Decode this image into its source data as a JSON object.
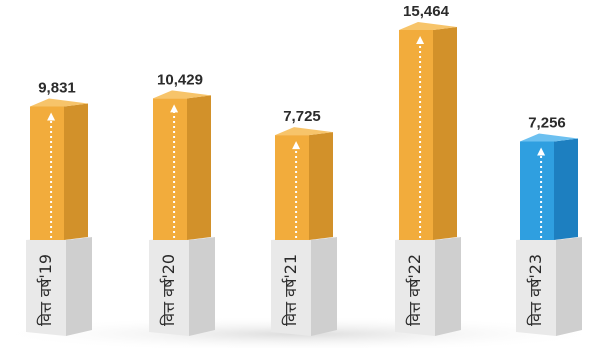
{
  "chart_data": {
    "type": "bar",
    "categories": [
      "वित्त वर्ष'19",
      "वित्त वर्ष'20",
      "वित्त वर्ष'21",
      "वित्त वर्ष'22",
      "वित्त वर्ष'23"
    ],
    "values": [
      9831,
      10429,
      7725,
      15464,
      7256
    ],
    "value_labels": [
      "9,831",
      "10,429",
      "7,725",
      "15,464",
      "7,256"
    ],
    "ylim": [
      0,
      15464
    ],
    "grid": false,
    "legend": "none",
    "colors": {
      "bar_default_front": "#f2ac3c",
      "bar_default_side": "#d2912a",
      "bar_default_top": "#f7c46a",
      "bar_highlight_front": "#2f9fe0",
      "bar_highlight_side": "#1d7fc0",
      "bar_highlight_top": "#6cc0f0",
      "base_front": "#e9e9e9",
      "base_side": "#cfcfcf",
      "base_top": "#f6f6f6",
      "floor": "#e2e2e2"
    },
    "highlight_index": 4
  }
}
